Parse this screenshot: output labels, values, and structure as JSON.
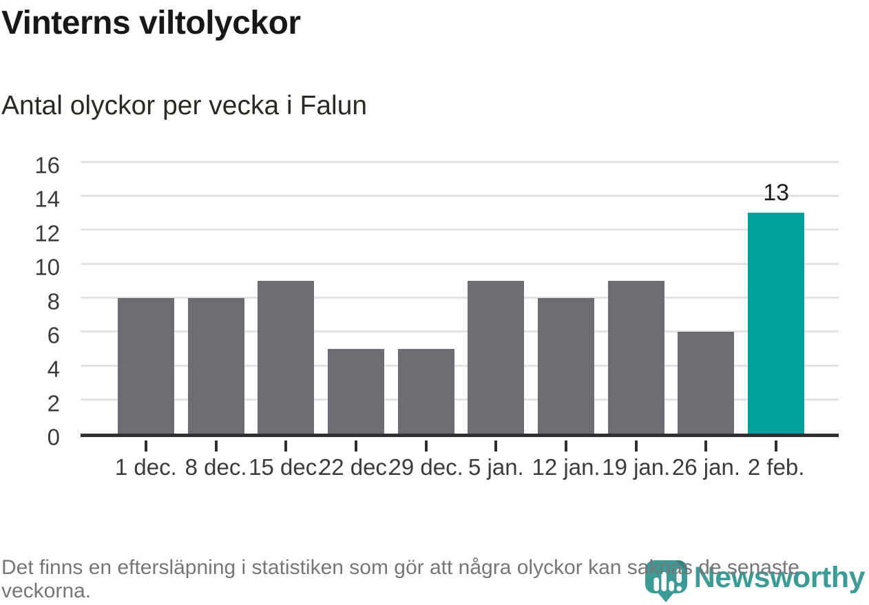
{
  "header": {
    "title": "Vinterns viltolyckor",
    "subtitle": "Antal olyckor per vecka i Falun"
  },
  "chart_data": {
    "type": "bar",
    "title": "Vinterns viltolyckor",
    "subtitle": "Antal olyckor per vecka i Falun",
    "categories": [
      "1 dec.",
      "8 dec.",
      "15 dec.",
      "22 dec.",
      "29 dec.",
      "5 jan.",
      "12 jan.",
      "19 jan.",
      "26 jan.",
      "2 feb."
    ],
    "values": [
      8,
      8,
      9,
      5,
      5,
      9,
      8,
      9,
      6,
      13
    ],
    "highlight_index": 9,
    "value_labels": {
      "9": "13"
    },
    "xlabel": "",
    "ylabel": "",
    "ylim": [
      0,
      16
    ],
    "yticks": [
      0,
      2,
      4,
      6,
      8,
      10,
      12,
      14,
      16
    ],
    "grid": "horizontal",
    "legend": "none",
    "bar_color": "#6c6c72",
    "highlight_color": "#00a09b"
  },
  "footer": {
    "note": "Det finns en eftersläpning i statistiken som gör att några olyckor kan saknas de senaste veckorna.",
    "brand": "Newsworthy"
  },
  "colors": {
    "background": "#ffffff",
    "bar_gray": "#6c6c72",
    "bar_teal": "#00a09b",
    "gridline": "#e2e2e2",
    "axis": "#2e2e2e",
    "text_title": "#181818",
    "text_axis": "#3b3b3b",
    "text_note": "#76767a",
    "logo_teal": "#3c9b94",
    "logo_fold": "#2f837d"
  }
}
